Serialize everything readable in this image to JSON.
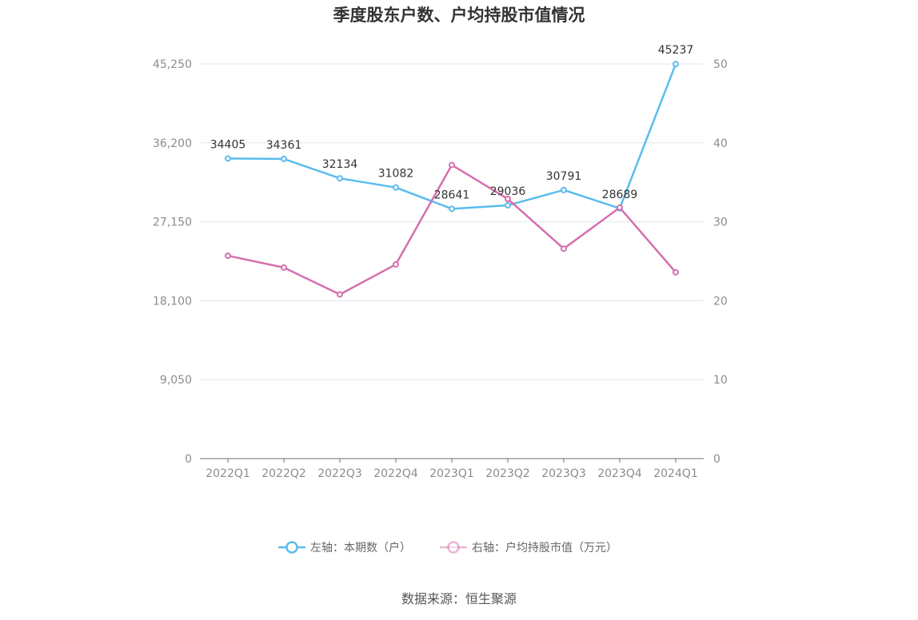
{
  "chart_data": {
    "type": "line",
    "title": "季度股东户数、户均持股市值情况",
    "categories": [
      "2022Q1",
      "2022Q2",
      "2022Q3",
      "2022Q4",
      "2023Q1",
      "2023Q2",
      "2023Q3",
      "2023Q4",
      "2024Q1"
    ],
    "y_left": {
      "ylim": [
        0,
        45250
      ],
      "ticks": [
        "0",
        "9,050",
        "18,100",
        "27,150",
        "36,200",
        "45,250"
      ],
      "tick_values": [
        0,
        9050,
        18100,
        27150,
        36200,
        45250
      ]
    },
    "y_right": {
      "ylim": [
        0,
        50
      ],
      "ticks": [
        "0",
        "10",
        "20",
        "30",
        "40",
        "50"
      ],
      "tick_values": [
        0,
        10,
        20,
        30,
        40,
        50
      ]
    },
    "series": [
      {
        "name": "左轴：本期数（户）",
        "axis": "left",
        "color": "#5bbcee",
        "values": [
          34405,
          34361,
          32134,
          31082,
          28641,
          29036,
          30791,
          28689,
          45237
        ],
        "labels": [
          "34405",
          "34361",
          "32134",
          "31082",
          "28641",
          "29036",
          "30791",
          "28689",
          "45237"
        ]
      },
      {
        "name": "右轴：户均持股市值（万元）",
        "axis": "right",
        "color": "#d56fad",
        "values": [
          25.7,
          24.2,
          20.8,
          24.6,
          37.2,
          32.9,
          26.6,
          31.8,
          23.6
        ]
      }
    ],
    "grid": true,
    "legend": "bottom-center"
  },
  "source_text": "数据来源：恒生聚源"
}
